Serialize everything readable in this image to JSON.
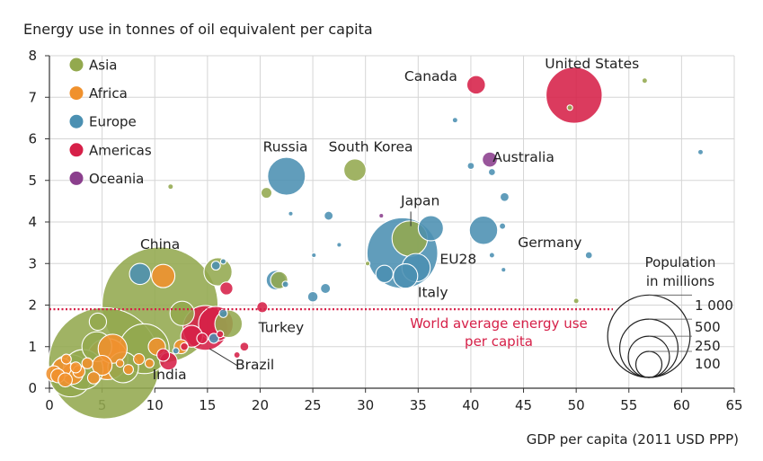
{
  "chart_data": {
    "type": "scatter",
    "title": "Energy use in tonnes of oil equivalent per capita",
    "xlabel": "GDP per capita (2011 USD PPP)",
    "ylabel": "Energy use in tonnes of oil equivalent per capita",
    "xlim": [
      0,
      65
    ],
    "ylim": [
      0,
      8
    ],
    "x_ticks": [
      0,
      5,
      10,
      15,
      20,
      25,
      30,
      35,
      40,
      45,
      50,
      55,
      60,
      65
    ],
    "y_ticks": [
      0,
      1,
      2,
      3,
      4,
      5,
      6,
      7,
      8
    ],
    "grid": true,
    "legend": {
      "position": "top-left",
      "entries": [
        {
          "name": "Asia",
          "color": "#93a94e"
        },
        {
          "name": "Africa",
          "color": "#f0912d"
        },
        {
          "name": "Europe",
          "color": "#4b90b2"
        },
        {
          "name": "Americas",
          "color": "#d62048"
        },
        {
          "name": "Oceania",
          "color": "#8b3f8d"
        }
      ]
    },
    "reference_line": {
      "y": 1.9,
      "label_line1": "World average energy use",
      "label_line2": "per capita",
      "color": "#d62048"
    },
    "size_legend": {
      "title_line1": "Population",
      "title_line2": "in millions",
      "values": [
        1000,
        500,
        250,
        100
      ],
      "labels": [
        "1 000",
        "500",
        "250",
        "100"
      ]
    },
    "annotations": [
      {
        "label": "China",
        "x": 10.5,
        "y": 3.35
      },
      {
        "label": "India",
        "x": 11.4,
        "y": 0.22
      },
      {
        "label": "Brazil",
        "x": 19.5,
        "y": 0.45
      },
      {
        "label": "Turkey",
        "x": 22.0,
        "y": 1.35
      },
      {
        "label": "Russia",
        "x": 22.4,
        "y": 5.7
      },
      {
        "label": "South Korea",
        "x": 30.5,
        "y": 5.7
      },
      {
        "label": "Japan",
        "x": 35.2,
        "y": 4.4
      },
      {
        "label": "EU28",
        "x": 38.8,
        "y": 3.0
      },
      {
        "label": "Italy",
        "x": 36.4,
        "y": 2.2
      },
      {
        "label": "Germany",
        "x": 47.5,
        "y": 3.4
      },
      {
        "label": "Canada",
        "x": 36.2,
        "y": 7.4
      },
      {
        "label": "United States",
        "x": 51.5,
        "y": 7.7
      },
      {
        "label": "Australia",
        "x": 45.0,
        "y": 5.45
      }
    ],
    "series": [
      {
        "name": "Asia",
        "color": "#93a94e",
        "points": [
          {
            "x": 10.5,
            "y": 2.0,
            "pop": 1360,
            "label": "China"
          },
          {
            "x": 5.2,
            "y": 0.6,
            "pop": 1250,
            "label": "India"
          },
          {
            "x": 34.2,
            "y": 3.6,
            "pop": 127,
            "label": "Japan"
          },
          {
            "x": 29.0,
            "y": 5.25,
            "pop": 50,
            "label": "South Korea"
          },
          {
            "x": 17.0,
            "y": 1.55,
            "pop": 76,
            "label": "Turkey"
          },
          {
            "x": 56.5,
            "y": 7.4,
            "pop": 3
          },
          {
            "x": 49.4,
            "y": 6.75,
            "pop": 3
          },
          {
            "x": 16.0,
            "y": 2.8,
            "pop": 80
          },
          {
            "x": 21.8,
            "y": 2.6,
            "pop": 30
          },
          {
            "x": 20.6,
            "y": 4.7,
            "pop": 12
          },
          {
            "x": 11.5,
            "y": 4.85,
            "pop": 3
          },
          {
            "x": 9.0,
            "y": 0.95,
            "pop": 250
          },
          {
            "x": 4.5,
            "y": 1.0,
            "pop": 90
          },
          {
            "x": 4.6,
            "y": 1.6,
            "pop": 30
          },
          {
            "x": 7.0,
            "y": 0.5,
            "pop": 95
          },
          {
            "x": 3.2,
            "y": 0.45,
            "pop": 160
          },
          {
            "x": 2.0,
            "y": 0.3,
            "pop": 180
          },
          {
            "x": 12.6,
            "y": 1.8,
            "pop": 60
          },
          {
            "x": 30.2,
            "y": 3.0,
            "pop": 2
          },
          {
            "x": 50.0,
            "y": 2.1,
            "pop": 3
          }
        ]
      },
      {
        "name": "Africa",
        "color": "#f0912d",
        "points": [
          {
            "x": 5.5,
            "y": 0.7,
            "pop": 170
          },
          {
            "x": 10.8,
            "y": 2.7,
            "pop": 55
          },
          {
            "x": 6.0,
            "y": 0.95,
            "pop": 85
          },
          {
            "x": 5.0,
            "y": 0.55,
            "pop": 40
          },
          {
            "x": 2.2,
            "y": 0.35,
            "pop": 45
          },
          {
            "x": 1.2,
            "y": 0.5,
            "pop": 35
          },
          {
            "x": 0.8,
            "y": 0.3,
            "pop": 20
          },
          {
            "x": 0.4,
            "y": 0.35,
            "pop": 25
          },
          {
            "x": 1.5,
            "y": 0.2,
            "pop": 20
          },
          {
            "x": 2.8,
            "y": 0.4,
            "pop": 15
          },
          {
            "x": 3.6,
            "y": 0.6,
            "pop": 12
          },
          {
            "x": 7.5,
            "y": 0.45,
            "pop": 10
          },
          {
            "x": 8.5,
            "y": 0.7,
            "pop": 12
          },
          {
            "x": 10.2,
            "y": 1.0,
            "pop": 30
          },
          {
            "x": 12.5,
            "y": 1.0,
            "pop": 20
          },
          {
            "x": 1.6,
            "y": 0.7,
            "pop": 10
          },
          {
            "x": 4.2,
            "y": 0.25,
            "pop": 15
          },
          {
            "x": 2.5,
            "y": 0.5,
            "pop": 12
          },
          {
            "x": 6.7,
            "y": 0.6,
            "pop": 6
          },
          {
            "x": 9.5,
            "y": 0.6,
            "pop": 8
          }
        ]
      },
      {
        "name": "Europe",
        "color": "#4b90b2",
        "points": [
          {
            "x": 33.5,
            "y": 3.25,
            "pop": 506,
            "label": "EU28"
          },
          {
            "x": 22.5,
            "y": 5.1,
            "pop": 144,
            "label": "Russia"
          },
          {
            "x": 34.8,
            "y": 2.9,
            "pop": 81
          },
          {
            "x": 33.8,
            "y": 2.7,
            "pop": 60
          },
          {
            "x": 31.8,
            "y": 2.75,
            "pop": 30
          },
          {
            "x": 41.2,
            "y": 3.8,
            "pop": 81,
            "label": "Germany"
          },
          {
            "x": 36.2,
            "y": 3.85,
            "pop": 64
          },
          {
            "x": 8.6,
            "y": 2.75,
            "pop": 45
          },
          {
            "x": 21.5,
            "y": 2.6,
            "pop": 38
          },
          {
            "x": 15.8,
            "y": 2.95,
            "pop": 8
          },
          {
            "x": 26.5,
            "y": 4.15,
            "pop": 8
          },
          {
            "x": 26.2,
            "y": 2.4,
            "pop": 10
          },
          {
            "x": 25.0,
            "y": 2.2,
            "pop": 11
          },
          {
            "x": 22.4,
            "y": 2.5,
            "pop": 4
          },
          {
            "x": 43.2,
            "y": 4.6,
            "pop": 8
          },
          {
            "x": 40.0,
            "y": 5.35,
            "pop": 5
          },
          {
            "x": 42.0,
            "y": 5.2,
            "pop": 5
          },
          {
            "x": 38.5,
            "y": 6.45,
            "pop": 3
          },
          {
            "x": 61.8,
            "y": 5.68,
            "pop": 3
          },
          {
            "x": 51.2,
            "y": 3.2,
            "pop": 5
          },
          {
            "x": 43.0,
            "y": 3.9,
            "pop": 4
          },
          {
            "x": 42.0,
            "y": 3.2,
            "pop": 3
          },
          {
            "x": 43.1,
            "y": 2.85,
            "pop": 2
          },
          {
            "x": 25.1,
            "y": 3.2,
            "pop": 2
          },
          {
            "x": 27.5,
            "y": 3.45,
            "pop": 1
          },
          {
            "x": 22.9,
            "y": 4.2,
            "pop": 1
          },
          {
            "x": 16.5,
            "y": 1.8,
            "pop": 7
          },
          {
            "x": 15.6,
            "y": 1.2,
            "pop": 10
          },
          {
            "x": 12.0,
            "y": 0.9,
            "pop": 4
          },
          {
            "x": 16.5,
            "y": 3.05,
            "pop": 3
          }
        ]
      },
      {
        "name": "Americas",
        "color": "#d62048",
        "points": [
          {
            "x": 49.8,
            "y": 7.05,
            "pop": 319,
            "label": "United States"
          },
          {
            "x": 40.5,
            "y": 7.3,
            "pop": 35,
            "label": "Canada"
          },
          {
            "x": 14.8,
            "y": 1.45,
            "pop": 202,
            "label": "Brazil"
          },
          {
            "x": 15.8,
            "y": 1.55,
            "pop": 122
          },
          {
            "x": 16.8,
            "y": 2.4,
            "pop": 17
          },
          {
            "x": 20.2,
            "y": 1.95,
            "pop": 12
          },
          {
            "x": 13.5,
            "y": 1.25,
            "pop": 48
          },
          {
            "x": 11.3,
            "y": 0.65,
            "pop": 31
          },
          {
            "x": 10.8,
            "y": 0.8,
            "pop": 16
          },
          {
            "x": 18.5,
            "y": 1.0,
            "pop": 8
          },
          {
            "x": 14.5,
            "y": 1.2,
            "pop": 12
          },
          {
            "x": 12.8,
            "y": 1.0,
            "pop": 6
          },
          {
            "x": 17.8,
            "y": 0.8,
            "pop": 4
          },
          {
            "x": 16.2,
            "y": 1.3,
            "pop": 5
          }
        ]
      },
      {
        "name": "Oceania",
        "color": "#8b3f8d",
        "points": [
          {
            "x": 41.8,
            "y": 5.5,
            "pop": 23,
            "label": "Australia"
          },
          {
            "x": 31.5,
            "y": 4.15,
            "pop": 2
          }
        ]
      }
    ]
  }
}
